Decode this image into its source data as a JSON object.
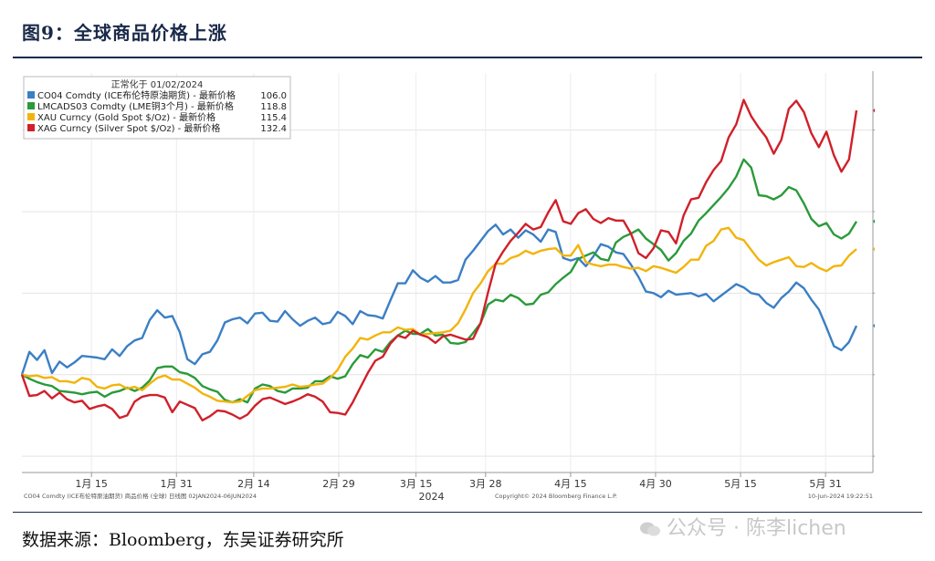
{
  "header": {
    "title": "图9：全球商品价格上涨"
  },
  "footer": {
    "source": "数据来源：Bloomberg，东吴证券研究所",
    "watermark": "公众号 · 陈李lichen"
  },
  "chart_data": {
    "type": "line",
    "legend_title": "正常化于 01/02/2024",
    "legend_placement": "top-left",
    "ylim": [
      88,
      137
    ],
    "yticks": [
      90.0,
      100.0,
      110.0,
      120.0,
      130.0
    ],
    "ytick_labels": [
      "90.0",
      "100.0",
      "110.0",
      "120.0",
      "130.0"
    ],
    "grid": true,
    "xlim": [
      0,
      108
    ],
    "xticks": [
      {
        "x": 9,
        "label": "1月 15"
      },
      {
        "x": 20,
        "label": "1月 31"
      },
      {
        "x": 30,
        "label": "2月 14"
      },
      {
        "x": 41,
        "label": "2月 29"
      },
      {
        "x": 51,
        "label": "3月 15"
      },
      {
        "x": 60,
        "label": "3月 28"
      },
      {
        "x": 71,
        "label": "4月 15"
      },
      {
        "x": 82,
        "label": "4月 30"
      },
      {
        "x": 93,
        "label": "5月 15"
      },
      {
        "x": 104,
        "label": "5月 31"
      }
    ],
    "year_label": {
      "x": 53,
      "label": "2024"
    },
    "bottom_left_note": "CO04 Comdty (ICE布伦特原油期货) 商品价格 (全球)   日线图 02JAN2024-06JUN2024",
    "bottom_mid_note": "Copyright© 2024 Bloomberg Finance L.P.",
    "bottom_right_note": "10-Jun-2024 19:22:51",
    "series": [
      {
        "name": "CO04 Comdty (ICE布伦特原油期货) - 最新价格",
        "last": "106.0",
        "color": "#3b7fc4",
        "values": [
          100,
          102.8,
          101.8,
          103,
          100.2,
          101.6,
          100.9,
          101.5,
          102.3,
          102.2,
          102.1,
          101.9,
          103.1,
          102.3,
          103.5,
          104.2,
          104.5,
          106.7,
          107.9,
          107.0,
          107.2,
          105.2,
          101.9,
          101.3,
          102.5,
          102.8,
          104.2,
          106.4,
          106.8,
          107.0,
          106.3,
          107.5,
          107.6,
          106.6,
          106.5,
          107.8,
          106.8,
          106.0,
          106.6,
          107.0,
          106.2,
          106.4,
          107.7,
          107.2,
          106.2,
          107.8,
          107.3,
          107.2,
          106.9,
          109.1,
          111.2,
          111.2,
          112.8,
          111.9,
          111.4,
          112.1,
          111.3,
          111.3,
          111.6,
          114.1,
          115.2,
          116.4,
          117.6,
          118.4,
          117.2,
          117.8,
          116.8,
          117.7,
          117.2,
          116.3,
          117.8,
          117.5,
          114.3,
          114.0,
          114.3,
          113.3,
          114.5,
          116.0,
          115.7,
          115.0,
          114.8,
          113.5,
          112.0,
          110.2,
          110.0,
          109.5,
          110.3,
          109.8,
          109.9,
          110.0,
          109.6,
          109.9,
          109.0,
          109.7,
          110.4,
          111.1,
          110.7,
          110.0,
          109.8,
          108.8,
          108.2,
          109.4,
          110.2,
          111.3,
          110.6,
          109.2,
          108.0,
          105.8,
          103.5,
          103.0,
          104.0,
          106.0
        ]
      },
      {
        "name": "LMCADS03 Comdty (LME铜3个月) - 最新价格",
        "last": "118.8",
        "color": "#2a9a3a",
        "values": [
          100,
          99.5,
          99.1,
          98.8,
          98.6,
          98.0,
          97.9,
          97.8,
          97.6,
          97.8,
          97.9,
          97.3,
          97.8,
          98.0,
          98.4,
          98.0,
          98.4,
          99.3,
          100.8,
          101.0,
          101.0,
          100.3,
          100.1,
          99.6,
          98.6,
          98.2,
          97.9,
          96.9,
          96.6,
          97.0,
          96.6,
          98.3,
          98.8,
          98.6,
          98.0,
          97.8,
          98.3,
          98.3,
          98.4,
          99.2,
          99.2,
          99.8,
          99.5,
          99.8,
          101.3,
          102.4,
          102.1,
          103.1,
          102.8,
          104.0,
          104.8,
          105.4,
          105.0,
          105.0,
          105.6,
          104.8,
          104.9,
          103.9,
          103.8,
          104.0,
          105.1,
          106.3,
          108.6,
          109.2,
          109.0,
          109.8,
          109.4,
          108.6,
          108.7,
          109.8,
          110.1,
          111.1,
          111.9,
          112.6,
          114.2,
          114.6,
          115.0,
          114.2,
          114.0,
          116.2,
          116.9,
          117.3,
          117.8,
          116.7,
          116.0,
          115.3,
          114.0,
          114.9,
          116.4,
          117.3,
          118.9,
          119.8,
          120.8,
          121.8,
          122.9,
          124.3,
          126.4,
          125.4,
          122.0,
          121.9,
          121.5,
          122.0,
          123.0,
          122.6,
          121.0,
          119.1,
          118.2,
          118.6,
          117.2,
          116.7,
          117.3,
          118.8
        ]
      },
      {
        "name": "XAU Curncy (Gold Spot  $/Oz) - 最新价格",
        "last": "115.4",
        "color": "#f2b40c",
        "values": [
          100,
          99.8,
          99.9,
          99.6,
          99.7,
          99.2,
          99.2,
          99.0,
          99.6,
          99.4,
          98.5,
          98.3,
          98.7,
          98.8,
          98.3,
          98.5,
          98.1,
          98.9,
          99.6,
          99.9,
          99.4,
          99.4,
          98.9,
          98.4,
          97.7,
          97.3,
          96.8,
          96.7,
          96.6,
          96.7,
          97.4,
          98.1,
          98.3,
          98.3,
          98.4,
          98.5,
          98.8,
          98.5,
          98.6,
          98.8,
          98.9,
          99.6,
          100.6,
          102.2,
          103.2,
          104.5,
          104.3,
          104.8,
          105.2,
          105.2,
          105.8,
          105.5,
          105.6,
          104.9,
          105.0,
          105.1,
          105.2,
          105.4,
          106.3,
          108.0,
          110.0,
          111.2,
          112.7,
          113.6,
          113.6,
          114.3,
          114.6,
          115.2,
          114.8,
          115.2,
          115.4,
          115.5,
          114.6,
          114.6,
          115.9,
          113.8,
          113.5,
          113.3,
          113.5,
          113.5,
          113.2,
          113.0,
          113.1,
          112.7,
          113.3,
          113.1,
          112.8,
          112.5,
          113.2,
          114.1,
          114.1,
          115.8,
          116.4,
          117.8,
          118.0,
          116.8,
          116.5,
          115.3,
          114.1,
          113.4,
          113.8,
          114.1,
          114.4,
          113.3,
          113.2,
          113.7,
          113.1,
          112.7,
          113.3,
          113.4,
          114.6,
          115.4
        ]
      },
      {
        "name": "XAG Curncy (Silver Spot  $/Oz) - 最新价格",
        "last": "132.4",
        "color": "#d0202a",
        "values": [
          100,
          97.4,
          97.5,
          98.0,
          97.1,
          97.8,
          97.0,
          96.6,
          96.8,
          95.8,
          96.1,
          96.3,
          95.8,
          94.7,
          95.0,
          96.7,
          97.3,
          97.5,
          97.5,
          97.2,
          95.4,
          96.7,
          96.3,
          95.9,
          94.4,
          94.9,
          95.6,
          95.5,
          95.1,
          94.6,
          95.1,
          96.2,
          97.0,
          97.2,
          96.8,
          96.4,
          96.7,
          97.1,
          97.6,
          97.3,
          96.7,
          95.4,
          95.3,
          95.1,
          96.6,
          98.4,
          100.2,
          101.7,
          102.2,
          103.8,
          104.8,
          104.5,
          105.4,
          104.9,
          104.6,
          103.9,
          104.7,
          104.9,
          104.6,
          104.3,
          104.4,
          106.3,
          110.1,
          113.6,
          115.1,
          116.4,
          117.4,
          118.5,
          117.8,
          118.1,
          119.9,
          121.4,
          118.8,
          118.5,
          119.8,
          120.3,
          119.1,
          118.6,
          119.2,
          118.9,
          118.9,
          117.3,
          114.9,
          114.3,
          115.5,
          117.7,
          117.5,
          116.1,
          119.5,
          121.5,
          121.7,
          123.6,
          125.1,
          126.2,
          129.1,
          130.7,
          133.7,
          131.7,
          130.3,
          129.1,
          127.1,
          128.8,
          132.6,
          133.6,
          132.2,
          129.6,
          127.9,
          129.8,
          126.9,
          124.9,
          126.4,
          132.4
        ]
      }
    ]
  }
}
